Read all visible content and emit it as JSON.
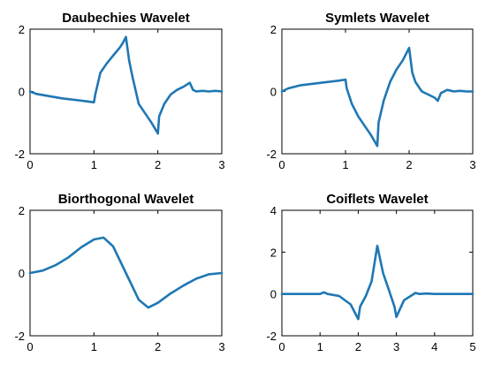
{
  "chart_data": [
    {
      "type": "line",
      "title": "Daubechies Wavelet",
      "xlabel": "",
      "ylabel": "",
      "xlim": [
        0,
        3
      ],
      "ylim": [
        -2,
        2
      ],
      "xticks": [
        "0",
        "1",
        "2",
        "3"
      ],
      "yticks": [
        "-2",
        "0",
        "2"
      ],
      "line_color": "#1f77b4",
      "grid": false,
      "series": [
        {
          "x": [
            0,
            0.1,
            0.3,
            0.5,
            0.7,
            0.9,
            1.0,
            1.02,
            1.1,
            1.2,
            1.3,
            1.4,
            1.45,
            1.5,
            1.55,
            1.6,
            1.7,
            1.8,
            1.9,
            2.0,
            2.02,
            2.1,
            2.2,
            2.3,
            2.4,
            2.5,
            2.55,
            2.6,
            2.7,
            2.8,
            2.9,
            3.0
          ],
          "y": [
            0.0,
            -0.08,
            -0.15,
            -0.22,
            -0.27,
            -0.32,
            -0.35,
            -0.1,
            0.6,
            0.9,
            1.15,
            1.4,
            1.55,
            1.75,
            1.0,
            0.5,
            -0.4,
            -0.7,
            -1.0,
            -1.35,
            -0.8,
            -0.4,
            -0.1,
            0.05,
            0.15,
            0.28,
            0.05,
            0.0,
            0.02,
            0.0,
            0.02,
            0.0
          ]
        }
      ]
    },
    {
      "type": "line",
      "title": "Symlets  Wavelet",
      "xlabel": "",
      "ylabel": "",
      "xlim": [
        0,
        3
      ],
      "ylim": [
        -2,
        2
      ],
      "xticks": [
        "0",
        "1",
        "2",
        "3"
      ],
      "yticks": [
        "-2",
        "0",
        "2"
      ],
      "line_color": "#1f77b4",
      "grid": false,
      "series": [
        {
          "x": [
            0,
            0.1,
            0.3,
            0.5,
            0.7,
            0.9,
            1.0,
            1.02,
            1.1,
            1.2,
            1.3,
            1.4,
            1.5,
            1.52,
            1.6,
            1.7,
            1.8,
            1.9,
            2.0,
            2.05,
            2.1,
            2.2,
            2.3,
            2.4,
            2.45,
            2.5,
            2.6,
            2.7,
            2.8,
            2.9,
            3.0
          ],
          "y": [
            0.0,
            0.1,
            0.2,
            0.25,
            0.3,
            0.35,
            0.38,
            0.1,
            -0.4,
            -0.8,
            -1.1,
            -1.4,
            -1.75,
            -1.0,
            -0.3,
            0.3,
            0.7,
            1.0,
            1.4,
            0.6,
            0.3,
            0.0,
            -0.1,
            -0.2,
            -0.3,
            -0.05,
            0.05,
            0.0,
            0.02,
            0.0,
            0.0
          ]
        }
      ]
    },
    {
      "type": "line",
      "title": "Biorthogonal Wavelet",
      "xlabel": "",
      "ylabel": "",
      "xlim": [
        0,
        3
      ],
      "ylim": [
        -2,
        2
      ],
      "xticks": [
        "0",
        "1",
        "2",
        "3"
      ],
      "yticks": [
        "-2",
        "0",
        "2"
      ],
      "line_color": "#1f77b4",
      "grid": false,
      "series": [
        {
          "x": [
            0,
            0.2,
            0.4,
            0.6,
            0.8,
            1.0,
            1.15,
            1.3,
            1.5,
            1.7,
            1.85,
            2.0,
            2.2,
            2.4,
            2.6,
            2.8,
            3.0
          ],
          "y": [
            0.0,
            0.08,
            0.25,
            0.5,
            0.82,
            1.07,
            1.13,
            0.85,
            0.0,
            -0.85,
            -1.1,
            -0.95,
            -0.65,
            -0.4,
            -0.18,
            -0.04,
            0.0
          ]
        }
      ]
    },
    {
      "type": "line",
      "title": "Coiflets Wavelet",
      "xlabel": "",
      "ylabel": "",
      "xlim": [
        0,
        5
      ],
      "ylim": [
        -2,
        4
      ],
      "xticks": [
        "0",
        "1",
        "2",
        "3",
        "4",
        "5"
      ],
      "yticks": [
        "-2",
        "0",
        "2",
        "4"
      ],
      "line_color": "#1f77b4",
      "grid": false,
      "series": [
        {
          "x": [
            0,
            0.5,
            1.0,
            1.1,
            1.2,
            1.5,
            1.8,
            2.0,
            2.05,
            2.2,
            2.35,
            2.5,
            2.65,
            2.8,
            2.95,
            3.0,
            3.2,
            3.5,
            3.6,
            3.8,
            4.0,
            4.5,
            5.0
          ],
          "y": [
            0.0,
            0.0,
            0.0,
            0.08,
            0.0,
            -0.1,
            -0.5,
            -1.2,
            -0.6,
            -0.1,
            0.6,
            2.3,
            1.0,
            0.2,
            -0.6,
            -1.1,
            -0.3,
            0.05,
            0.0,
            0.02,
            0.0,
            0.0,
            0.0
          ]
        }
      ]
    }
  ]
}
